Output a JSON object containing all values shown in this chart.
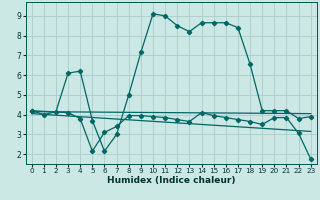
{
  "xlabel": "Humidex (Indice chaleur)",
  "background_color": "#cce8e4",
  "grid_color": "#aacccc",
  "line_color": "#006666",
  "xlim": [
    -0.5,
    23.5
  ],
  "ylim": [
    1.5,
    9.7
  ],
  "line1_x": [
    0,
    1,
    2,
    3,
    4,
    5,
    6,
    7,
    8,
    9,
    10,
    11,
    12,
    13,
    14,
    15,
    16,
    17,
    18,
    19,
    20,
    21,
    22,
    23
  ],
  "line1_y": [
    4.2,
    4.0,
    4.15,
    6.1,
    6.2,
    3.7,
    2.15,
    3.0,
    5.0,
    7.15,
    9.1,
    9.0,
    8.5,
    8.2,
    8.65,
    8.65,
    8.65,
    8.4,
    6.55,
    4.2,
    4.2,
    4.2,
    3.8,
    3.9
  ],
  "line2_x": [
    0,
    3,
    4,
    5,
    6,
    7,
    8,
    9,
    10,
    11,
    12,
    13,
    14,
    15,
    16,
    17,
    18,
    19,
    20,
    21,
    22,
    23
  ],
  "line2_y": [
    4.2,
    4.1,
    3.8,
    2.15,
    3.1,
    3.4,
    3.95,
    3.95,
    3.9,
    3.85,
    3.75,
    3.65,
    4.1,
    3.95,
    3.85,
    3.75,
    3.65,
    3.5,
    3.85,
    3.85,
    3.05,
    1.75
  ],
  "line3_x": [
    0,
    23
  ],
  "line3_y": [
    4.15,
    4.05
  ],
  "line4_x": [
    0,
    23
  ],
  "line4_y": [
    4.05,
    3.15
  ],
  "xticks": [
    0,
    1,
    2,
    3,
    4,
    5,
    6,
    7,
    8,
    9,
    10,
    11,
    12,
    13,
    14,
    15,
    16,
    17,
    18,
    19,
    20,
    21,
    22,
    23
  ],
  "yticks": [
    2,
    3,
    4,
    5,
    6,
    7,
    8,
    9
  ]
}
